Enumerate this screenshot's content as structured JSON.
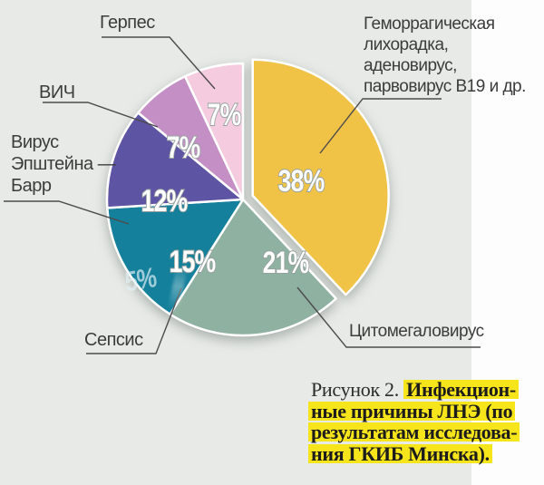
{
  "figure": {
    "caption": {
      "prefix": "Рисунок 2. ",
      "highlight_lines": [
        "Инфекцион-",
        "ные причины ЛНЭ (по",
        "результатам исследова-",
        "ния ГКИБ Минска)."
      ],
      "highlight_color": "#f7e51b"
    },
    "ghost_text": "5%"
  },
  "chart_data": {
    "type": "pie",
    "title": "Инфекционные причины ЛНЭ (по результатам исследования ГКИБ Минска)",
    "unit": "%",
    "start_angle": "12-oclock",
    "direction": "clockwise",
    "legend_position": "outside-callouts",
    "slices": [
      {
        "label": "Геморрагическая лихорадка, аденовирус, парвовирус B19 и др.",
        "value": 38,
        "color": "#f0c246",
        "exploded": true
      },
      {
        "label": "Цитомегаловирус",
        "value": 21,
        "color": "#8fb1a1",
        "exploded": false
      },
      {
        "label": "Сепсис",
        "value": 15,
        "color": "#14809b",
        "exploded": false
      },
      {
        "label": "Вирус Эпштейна — Барр",
        "value": 12,
        "color": "#5d54a3",
        "exploded": false
      },
      {
        "label": "ВИЧ",
        "value": 7,
        "color": "#c48fc5",
        "exploded": false
      },
      {
        "label": "Герпес",
        "value": 7,
        "color": "#f5cbdf",
        "exploded": false
      }
    ]
  },
  "callout_labels": {
    "hemo": [
      "Геморрагическая",
      "лихорадка,",
      "аденовирус,",
      "парвовирус B19 и др."
    ],
    "cmv": "Цитомегаловирус",
    "sepsis": "Сепсис",
    "ebv": [
      "Вирус",
      "Эпштейна —",
      "Барр"
    ],
    "hiv": "ВИЧ",
    "herpes": "Герпес"
  },
  "colors": {
    "panel_background": "#e7eae7",
    "page_background": "#fdfdfd",
    "callout_line": "#4c4c4c",
    "label_text": "#3c3c3c"
  }
}
